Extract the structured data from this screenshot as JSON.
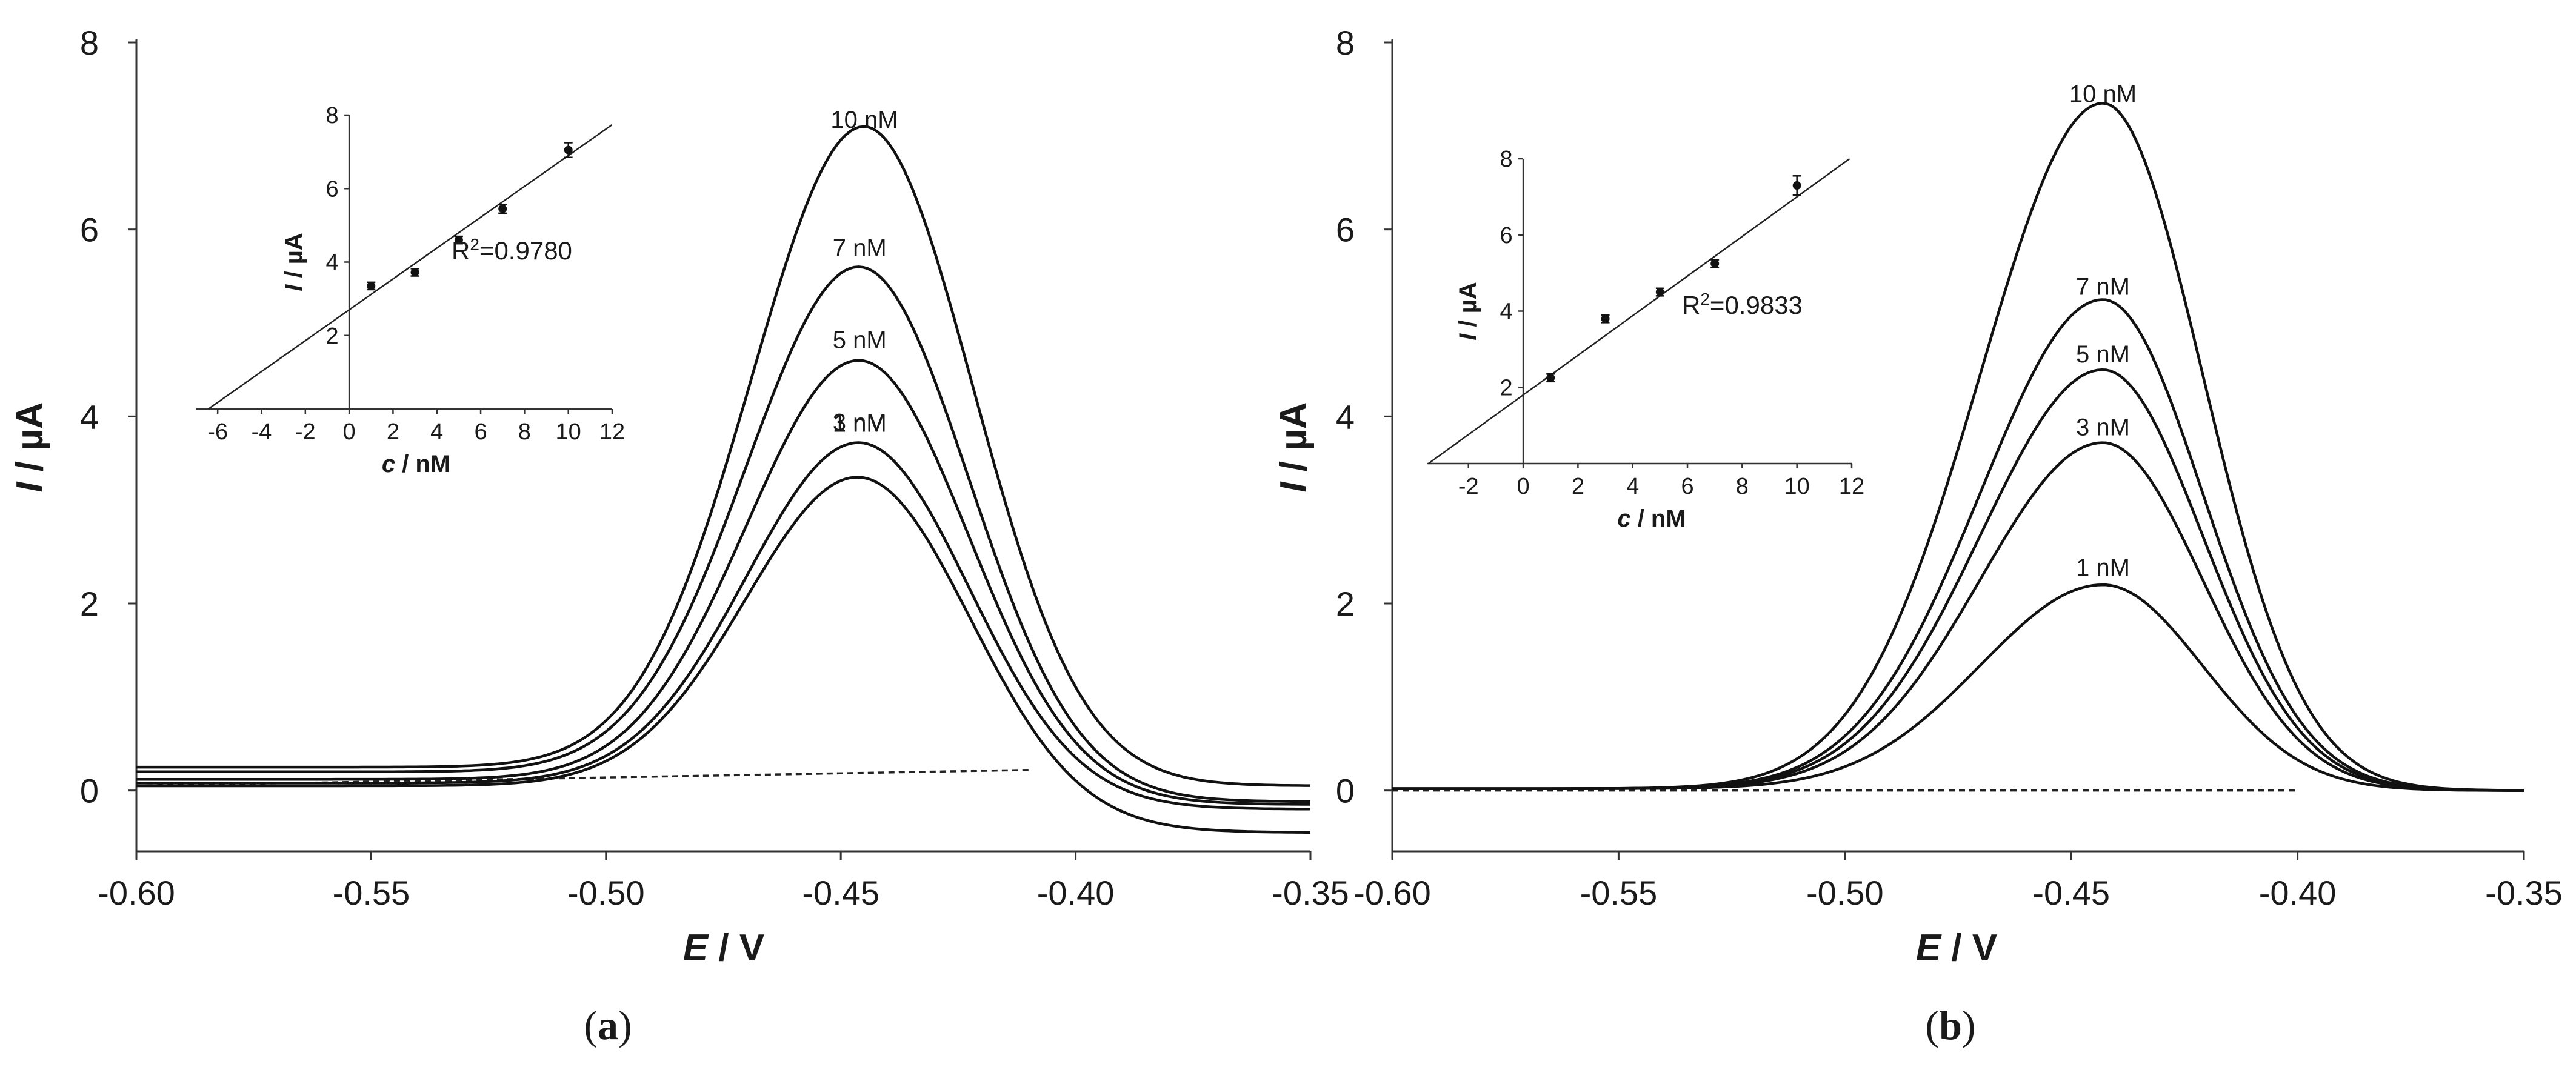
{
  "panels": [
    {
      "id": "a",
      "caption_open": "(",
      "caption_letter": "a",
      "caption_close": ")",
      "chart_data": {
        "type": "line",
        "title": "",
        "xlabel_italic": "E",
        "xlabel_unit": " / V",
        "ylabel_italic": "I",
        "ylabel_unit": " / µA",
        "xlim": [
          -0.6,
          -0.35
        ],
        "ylim": [
          -0.65,
          8
        ],
        "xticks": [
          -0.6,
          -0.55,
          -0.5,
          -0.45,
          -0.4,
          -0.35
        ],
        "xtick_labels": [
          "-0.60",
          "-0.55",
          "-0.50",
          "-0.45",
          "-0.40",
          "-0.35"
        ],
        "yticks": [
          0,
          2,
          4,
          6,
          8
        ],
        "ytick_labels": [
          "0",
          "2",
          "4",
          "6",
          "8"
        ],
        "series": [
          {
            "name": "1 nM",
            "label": "1 nM",
            "peak_potential": -0.446,
            "peak_current": 3.35,
            "start_current": 0.05,
            "end_current": -0.45
          },
          {
            "name": "3 nM",
            "label": "3 nM",
            "peak_potential": -0.446,
            "peak_current": 3.72,
            "start_current": 0.08,
            "end_current": -0.2
          },
          {
            "name": "5 nM",
            "label": "5 nM",
            "peak_potential": -0.446,
            "peak_current": 4.6,
            "start_current": 0.12,
            "end_current": -0.15
          },
          {
            "name": "7 nM",
            "label": "7 nM",
            "peak_potential": -0.446,
            "peak_current": 5.6,
            "start_current": 0.2,
            "end_current": -0.12
          },
          {
            "name": "10 nM",
            "label": "10 nM",
            "peak_potential": -0.445,
            "peak_current": 7.1,
            "start_current": 0.25,
            "end_current": 0.05
          }
        ],
        "baseline": {
          "style": "dashed",
          "from": [
            -0.6,
            0.05
          ],
          "to": [
            -0.41,
            0.22
          ]
        },
        "inset": {
          "type": "scatter",
          "xlabel_italic": "c",
          "xlabel_unit": " / nM",
          "ylabel_italic": "I",
          "ylabel_unit": " / µA",
          "xlim": [
            -7,
            12
          ],
          "ylim": [
            0,
            8
          ],
          "xticks": [
            -6,
            -4,
            -2,
            0,
            2,
            4,
            6,
            8,
            10,
            12
          ],
          "xtick_labels": [
            "-6",
            "-4",
            "-2",
            "0",
            "2",
            "4",
            "6",
            "8",
            "10",
            "12"
          ],
          "yticks": [
            2,
            4,
            6,
            8
          ],
          "ytick_labels": [
            "2",
            "4",
            "6",
            "8"
          ],
          "x": [
            1,
            3,
            5,
            7,
            10
          ],
          "y": [
            3.35,
            3.72,
            4.6,
            5.45,
            7.05
          ],
          "error": [
            0.1,
            0.1,
            0.1,
            0.12,
            0.2
          ],
          "fit": {
            "slope": 0.42,
            "intercept": 2.7
          },
          "r2_prefix": "R",
          "r2_exp": "2",
          "r2_value": "=0.9780"
        }
      }
    },
    {
      "id": "b",
      "caption_open": "(",
      "caption_letter": "b",
      "caption_close": ")",
      "chart_data": {
        "type": "line",
        "title": "",
        "xlabel_italic": "E",
        "xlabel_unit": " / V",
        "ylabel_italic": "I",
        "ylabel_unit": " / µA",
        "xlim": [
          -0.6,
          -0.35
        ],
        "ylim": [
          -0.65,
          8
        ],
        "xticks": [
          -0.6,
          -0.55,
          -0.5,
          -0.45,
          -0.4,
          -0.35
        ],
        "xtick_labels": [
          "-0.60",
          "-0.55",
          "-0.50",
          "-0.45",
          "-0.40",
          "-0.35"
        ],
        "yticks": [
          0,
          2,
          4,
          6,
          8
        ],
        "ytick_labels": [
          "0",
          "2",
          "4",
          "6",
          "8"
        ],
        "series": [
          {
            "name": "1 nM",
            "label": "1 nM",
            "peak_potential": -0.443,
            "peak_current": 2.2,
            "start_current": 0.02,
            "end_current": 0.0
          },
          {
            "name": "3 nM",
            "label": "3 nM",
            "peak_potential": -0.443,
            "peak_current": 3.72,
            "start_current": 0.02,
            "end_current": 0.0
          },
          {
            "name": "5 nM",
            "label": "5 nM",
            "peak_potential": -0.443,
            "peak_current": 4.5,
            "start_current": 0.02,
            "end_current": 0.0
          },
          {
            "name": "7 nM",
            "label": "7 nM",
            "peak_potential": -0.443,
            "peak_current": 5.25,
            "start_current": 0.02,
            "end_current": 0.0
          },
          {
            "name": "10 nM",
            "label": "10 nM",
            "peak_potential": -0.443,
            "peak_current": 7.35,
            "start_current": 0.02,
            "end_current": 0.0
          }
        ],
        "baseline": {
          "style": "dashed",
          "from": [
            -0.6,
            0.0
          ],
          "to": [
            -0.4,
            0.0
          ]
        },
        "inset": {
          "type": "scatter",
          "xlabel_italic": "c",
          "xlabel_unit": " / nM",
          "ylabel_italic": "I",
          "ylabel_unit": " / µA",
          "xlim": [
            -3.5,
            12
          ],
          "ylim": [
            0,
            8
          ],
          "xticks": [
            -2,
            0,
            2,
            4,
            6,
            8,
            10,
            12
          ],
          "xtick_labels": [
            "-2",
            "0",
            "2",
            "4",
            "6",
            "8",
            "10",
            "12"
          ],
          "yticks": [
            2,
            4,
            6,
            8
          ],
          "ytick_labels": [
            "2",
            "4",
            "6",
            "8"
          ],
          "x": [
            1,
            3,
            5,
            7,
            10
          ],
          "y": [
            2.25,
            3.8,
            4.5,
            5.25,
            7.3
          ],
          "error": [
            0.1,
            0.1,
            0.1,
            0.1,
            0.25
          ],
          "fit": {
            "slope": 0.52,
            "intercept": 1.8
          },
          "r2_prefix": "R",
          "r2_exp": "2",
          "r2_value": "=0.9833"
        }
      }
    }
  ]
}
